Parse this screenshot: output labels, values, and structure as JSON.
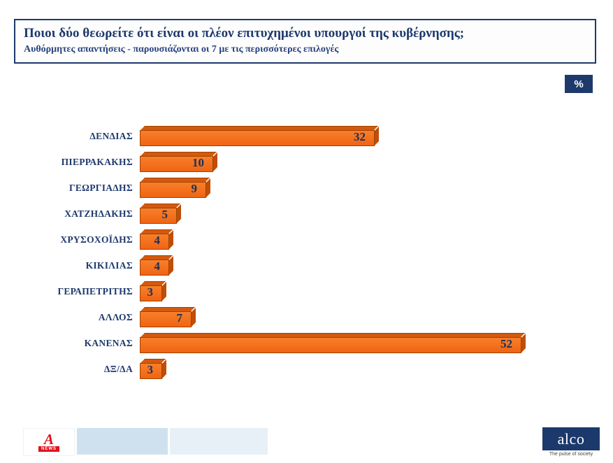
{
  "header": {
    "title": "Ποιοι δύο θεωρείτε ότι είναι οι πλέον επιτυχημένοι υπουργοί της κυβέρνησης;",
    "subtitle": "Αυθόρμητες απαντήσεις - παρουσιάζονται οι 7 με τις περισσότερες επιλογές"
  },
  "unit_badge": "%",
  "chart_data": {
    "type": "bar",
    "orientation": "horizontal",
    "title": "Ποιοι δύο θεωρείτε ότι είναι οι πλέον επιτυχημένοι υπουργοί της κυβέρνησης;",
    "categories": [
      "ΔΕΝΔΙΑΣ",
      "ΠΙΕΡΡΑΚΑΚΗΣ",
      "ΓΕΩΡΓΙΑΔΗΣ",
      "ΧΑΤΖΗΔΑΚΗΣ",
      "ΧΡΥΣΟΧΟΪΔΗΣ",
      "ΚΙΚΙΛΙΑΣ",
      "ΓΕΡΑΠΕΤΡΙΤΗΣ",
      "ΑΛΛΟΣ",
      "ΚΑΝΕΝΑΣ",
      "ΔΞ/ΔΑ"
    ],
    "values": [
      32,
      10,
      9,
      5,
      4,
      4,
      3,
      7,
      52,
      3
    ],
    "unit": "%",
    "xlim": [
      0,
      55
    ],
    "grid": false,
    "legend": false,
    "value_labels": "inside-end",
    "bar_color": "#f4701d",
    "bar_top_color": "#d4590e",
    "bar_side_color": "#bf4e07",
    "label_color": "#1e3a6d"
  },
  "footer": {
    "alpha": {
      "letter": "A",
      "news_label": "NEWS"
    },
    "alco": {
      "name": "alco",
      "tagline": "The pulse of society"
    }
  },
  "colors": {
    "navy": "#1e3a6d",
    "accent_orange": "#f4701d",
    "alpha_red": "#e1111c"
  }
}
